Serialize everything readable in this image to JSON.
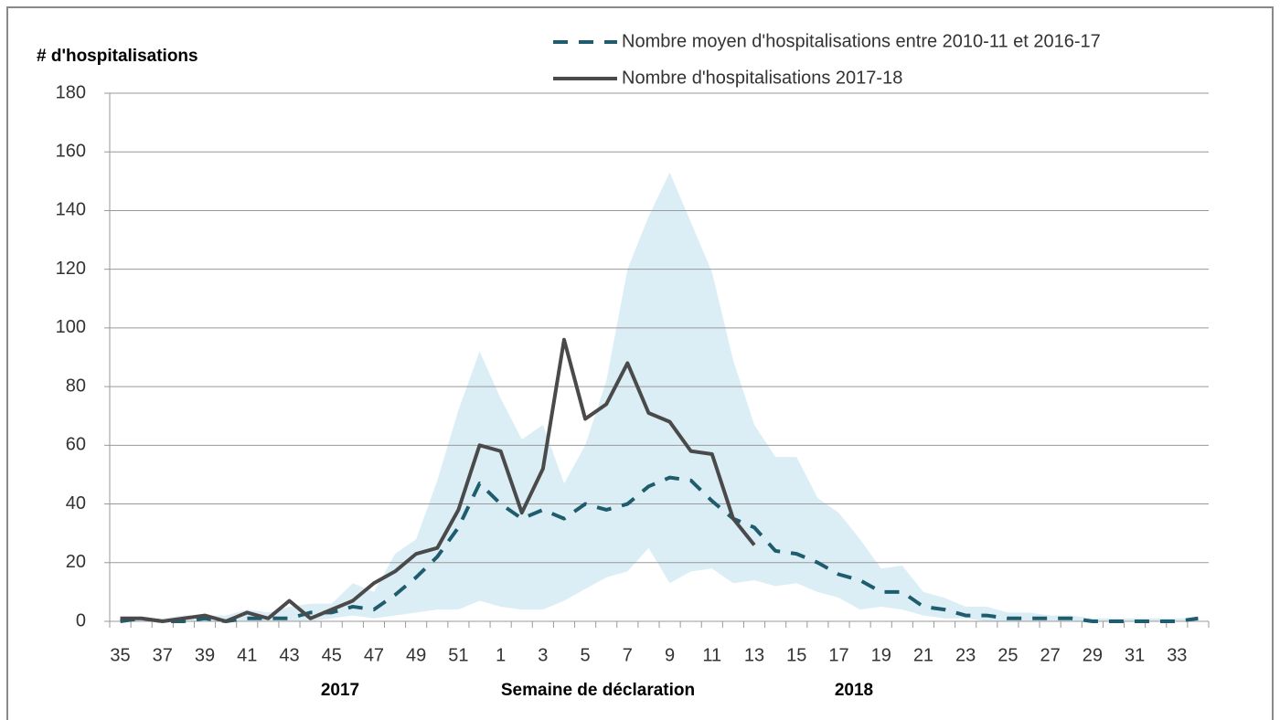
{
  "chart_data": {
    "type": "line",
    "y_label": "# d'hospitalisations",
    "x_label": "Semaine de déclaration",
    "annotations": [
      "2017",
      "2018"
    ],
    "categories": [
      "35",
      null,
      "37",
      null,
      "39",
      null,
      "41",
      null,
      "43",
      null,
      "45",
      null,
      "47",
      null,
      "49",
      null,
      "51",
      null,
      "1",
      null,
      "3",
      null,
      "5",
      null,
      "7",
      null,
      "9",
      null,
      "11",
      null,
      "13",
      null,
      "15",
      null,
      "17",
      null,
      "19",
      null,
      "21",
      null,
      "23",
      null,
      "25",
      null,
      "27",
      null,
      "29",
      null,
      "31",
      null,
      "33",
      null
    ],
    "band": {
      "color": "#dbeef5",
      "upper": [
        1,
        1,
        1,
        2,
        2,
        2,
        4,
        3,
        5,
        6,
        6,
        13,
        10,
        23,
        28,
        48,
        72,
        92,
        76,
        62,
        67,
        47,
        60,
        82,
        120,
        138,
        153,
        136,
        119,
        89,
        67,
        56,
        56,
        42,
        37,
        28,
        18,
        19,
        10,
        8,
        5,
        5,
        3,
        3,
        2,
        2,
        1,
        1,
        1,
        1,
        1,
        1
      ],
      "lower": [
        0,
        0,
        0,
        0,
        0,
        0,
        0,
        0,
        0,
        0,
        1,
        2,
        1,
        2,
        3,
        4,
        4,
        7,
        5,
        4,
        4,
        7,
        11,
        15,
        17,
        25,
        13,
        17,
        18,
        13,
        14,
        12,
        13,
        10,
        8,
        4,
        5,
        4,
        2,
        1,
        1,
        0,
        0,
        0,
        0,
        0,
        0,
        0,
        0,
        0,
        0,
        0
      ]
    },
    "series": [
      {
        "name": "Nombre moyen d'hospitalisations entre 2010-11 et 2016-17",
        "color": "#1f5c6e",
        "dashed": true,
        "values": [
          0,
          1,
          0,
          0,
          1,
          0,
          1,
          1,
          1,
          3,
          3,
          5,
          4,
          9,
          15,
          22,
          32,
          47,
          40,
          35,
          38,
          35,
          40,
          38,
          40,
          46,
          49,
          48,
          41,
          35,
          32,
          24,
          23,
          20,
          16,
          14,
          10,
          10,
          5,
          4,
          2,
          2,
          1,
          1,
          1,
          1,
          0,
          0,
          0,
          0,
          0,
          1
        ]
      },
      {
        "name": "Nombre d'hospitalisations 2017-18",
        "color": "#4a4a4a",
        "dashed": false,
        "values": [
          1,
          1,
          0,
          1,
          2,
          0,
          3,
          1,
          7,
          1,
          4,
          7,
          13,
          17,
          23,
          25,
          38,
          60,
          58,
          37,
          52,
          96,
          69,
          74,
          88,
          71,
          68,
          58,
          57,
          35,
          26,
          null,
          null,
          null,
          null,
          null,
          null,
          null,
          null,
          null,
          null,
          null,
          null,
          null,
          null,
          null,
          null,
          null,
          null,
          null,
          null,
          null
        ]
      }
    ],
    "ylim": [
      0,
      180
    ],
    "yticks": [
      0,
      20,
      40,
      60,
      80,
      100,
      120,
      140,
      160,
      180
    ],
    "grid": true
  }
}
